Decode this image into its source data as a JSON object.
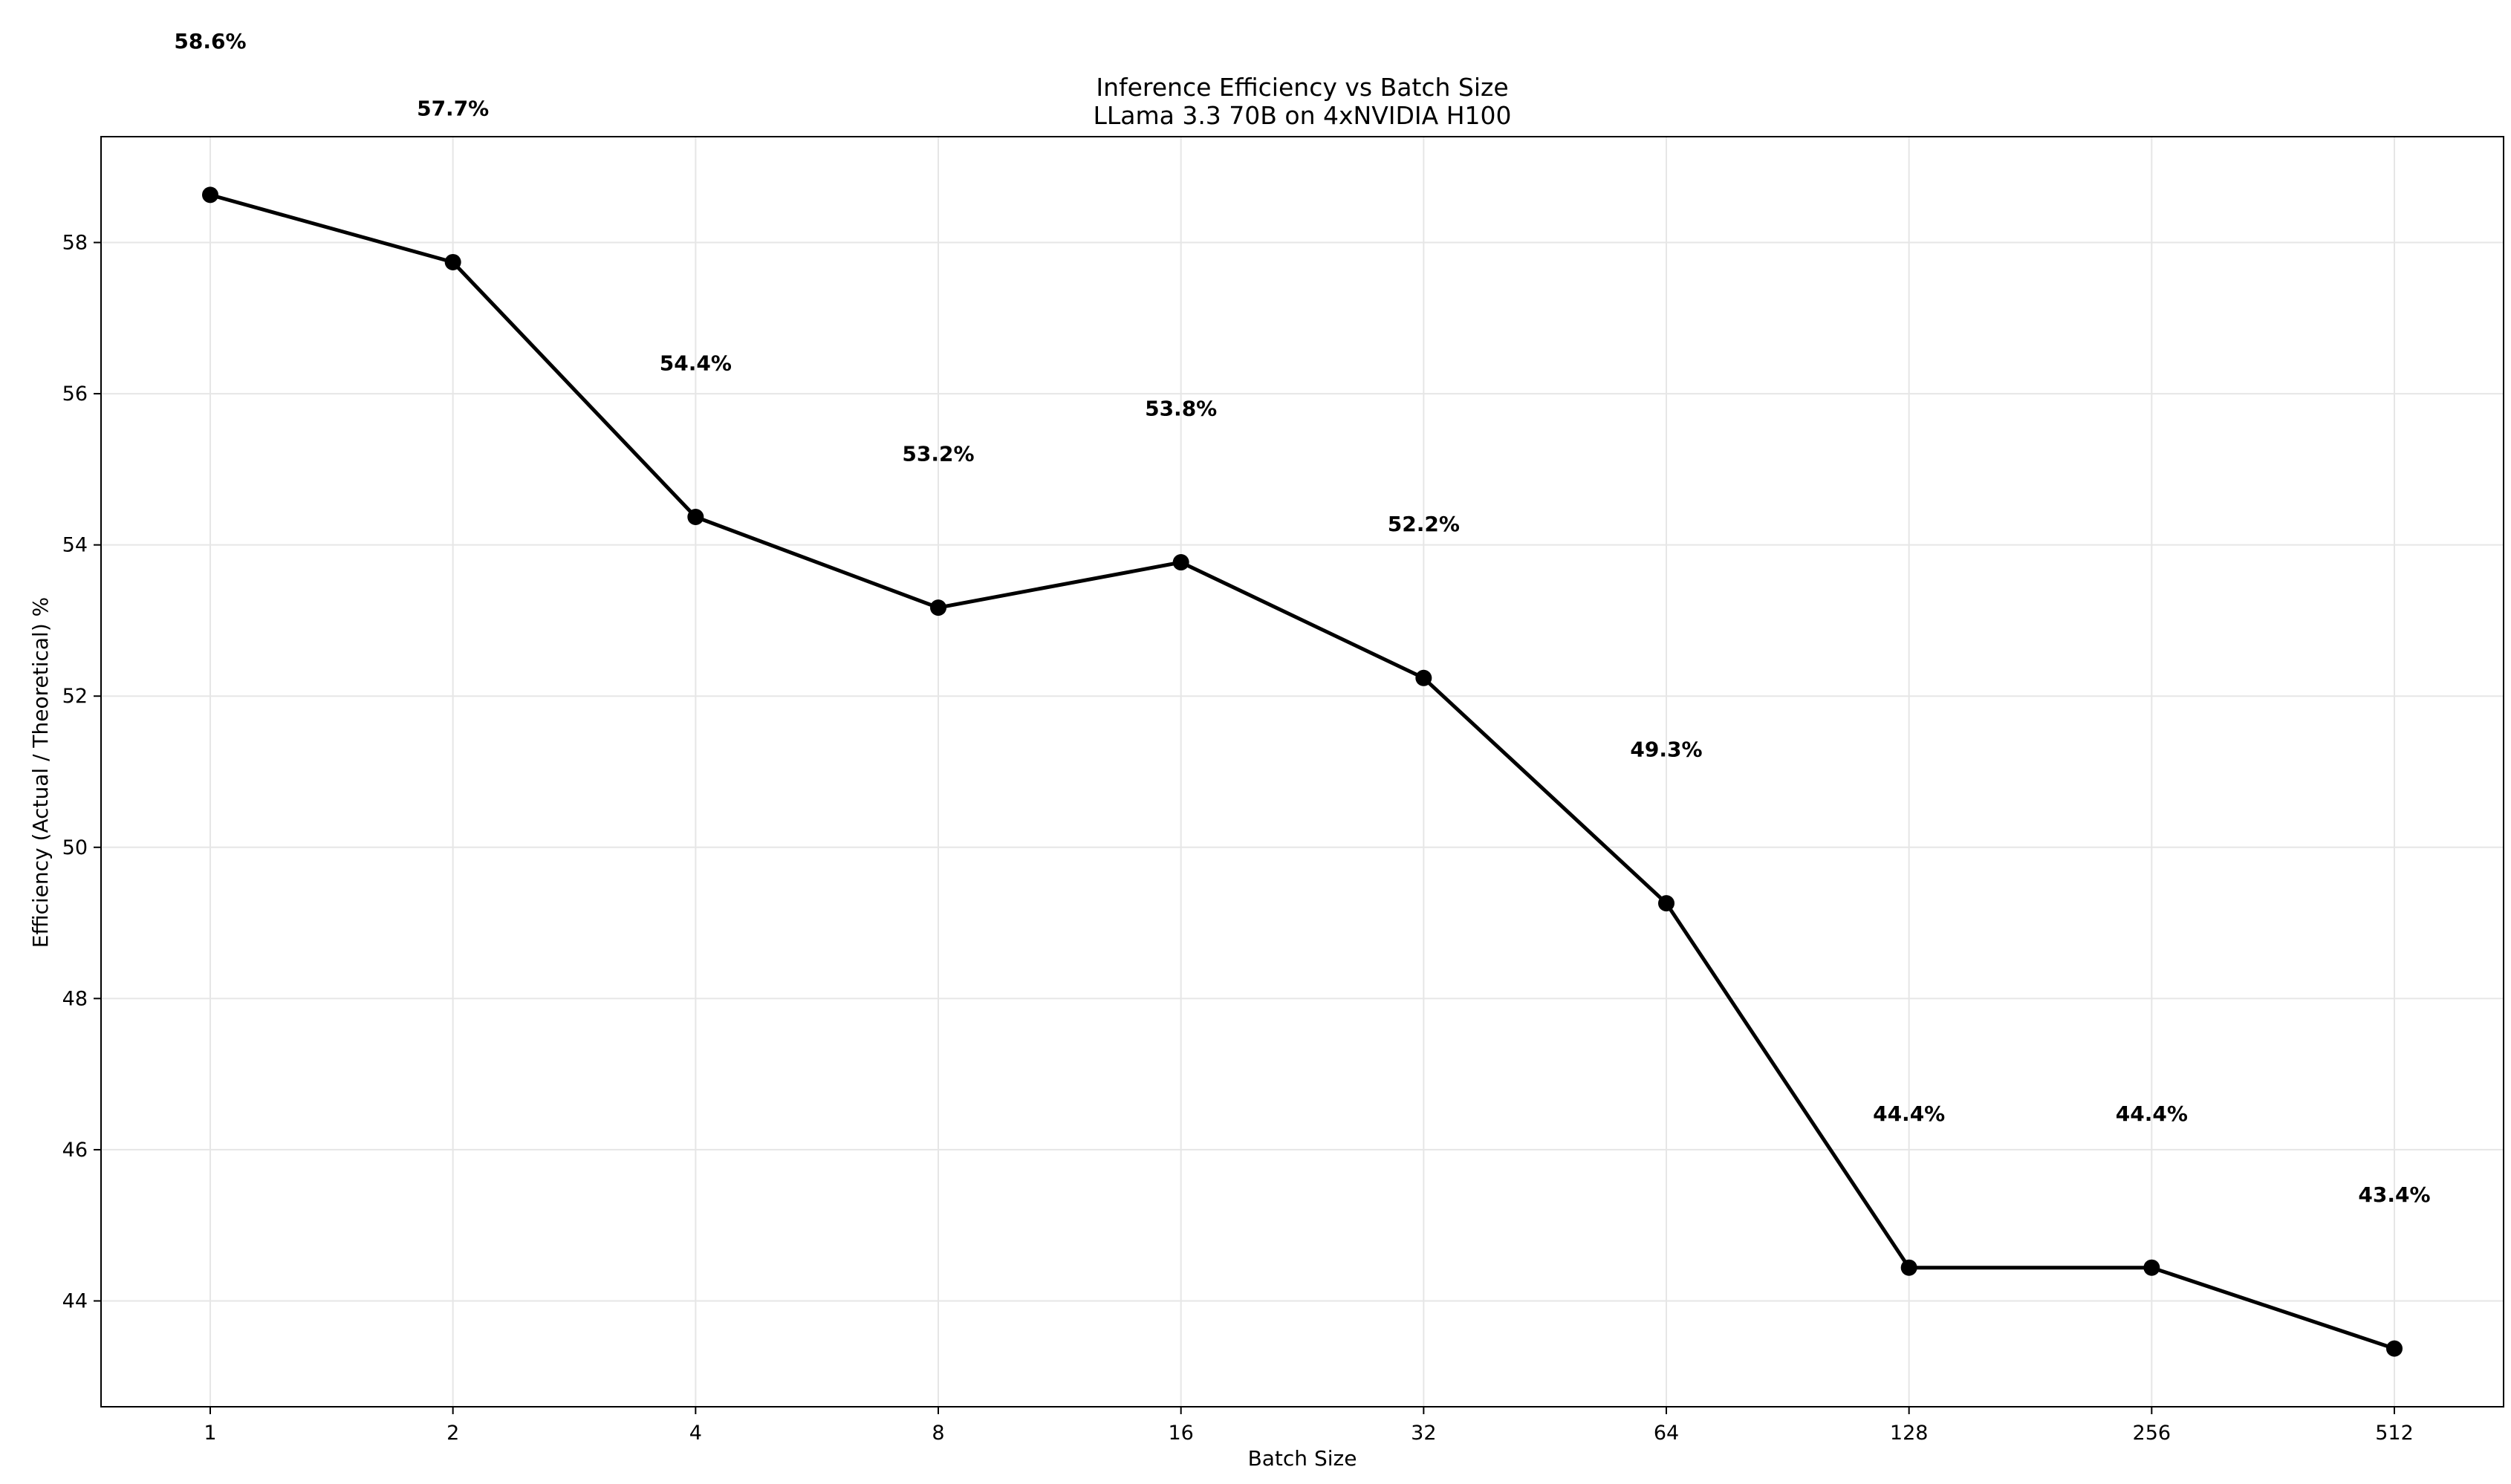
{
  "chart_data": {
    "type": "line",
    "title": "Inference Efficiency vs Batch Size",
    "subtitle": "LLama 3.3 70B on 4xNVIDIA H100",
    "xlabel": "Batch Size",
    "ylabel": "Efficiency (Actual / Theoretical) %",
    "categories": [
      "1",
      "2",
      "4",
      "8",
      "16",
      "32",
      "64",
      "128",
      "256",
      "512"
    ],
    "x_scale": "log2",
    "values": [
      58.63,
      57.74,
      54.37,
      53.17,
      53.77,
      52.24,
      49.26,
      44.44,
      44.44,
      43.37
    ],
    "data_labels": [
      "58.6%",
      "57.7%",
      "54.4%",
      "53.2%",
      "53.8%",
      "52.2%",
      "49.3%",
      "44.4%",
      "44.4%",
      "43.4%"
    ],
    "ylim": [
      42.6,
      59.4
    ],
    "yticks": [
      44,
      46,
      48,
      50,
      52,
      54,
      56,
      58
    ],
    "grid": true,
    "legend": "none",
    "colors": {
      "line": "#000000",
      "marker": "#000000",
      "grid": "#e6e6e6"
    }
  }
}
